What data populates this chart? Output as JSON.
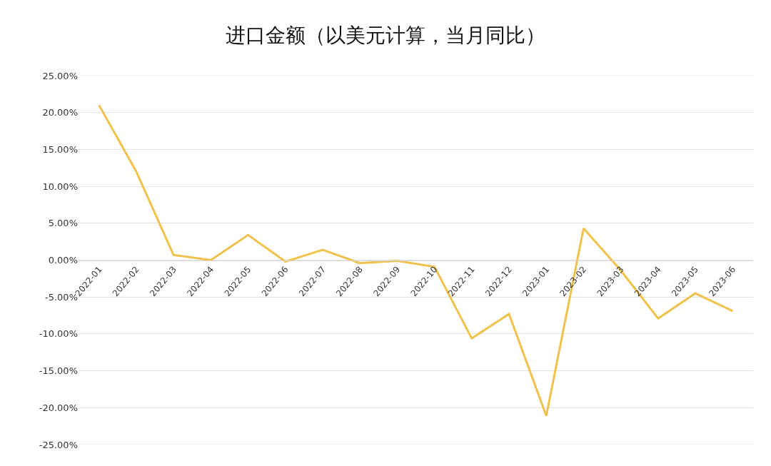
{
  "chart_data": {
    "type": "line",
    "title": "进口金额（以美元计算，当月同比）",
    "categories": [
      "2022-01",
      "2022-02",
      "2022-03",
      "2022-04",
      "2022-05",
      "2022-06",
      "2022-07",
      "2022-08",
      "2022-09",
      "2022-10",
      "2022-11",
      "2022-12",
      "2023-01",
      "2023-02",
      "2023-03",
      "2023-04",
      "2023-05",
      "2023-06"
    ],
    "series": [
      {
        "color": "#f0c14b",
        "values": [
          21.0,
          12.0,
          0.7,
          0.0,
          3.4,
          -0.2,
          1.4,
          -0.4,
          -0.1,
          -0.9,
          -10.6,
          -7.3,
          -21.1,
          4.3,
          -1.4,
          -7.9,
          -4.5,
          -6.9
        ]
      }
    ],
    "ylim": [
      -25,
      25
    ],
    "yticks": [
      {
        "value": -25,
        "label": "-25.00%"
      },
      {
        "value": -20,
        "label": "-20.00%"
      },
      {
        "value": -15,
        "label": "-15.00%"
      },
      {
        "value": -10,
        "label": "-10.00%"
      },
      {
        "value": -5,
        "label": "-5.00%"
      },
      {
        "value": 0,
        "label": "0.00%"
      },
      {
        "value": 5,
        "label": "5.00%"
      },
      {
        "value": 10,
        "label": "10.00%"
      },
      {
        "value": 15,
        "label": "15.00%"
      },
      {
        "value": 20,
        "label": "20.00%"
      },
      {
        "value": 25,
        "label": "25.00%"
      }
    ],
    "grid": "y",
    "marker": "none",
    "line_style": "solid"
  }
}
